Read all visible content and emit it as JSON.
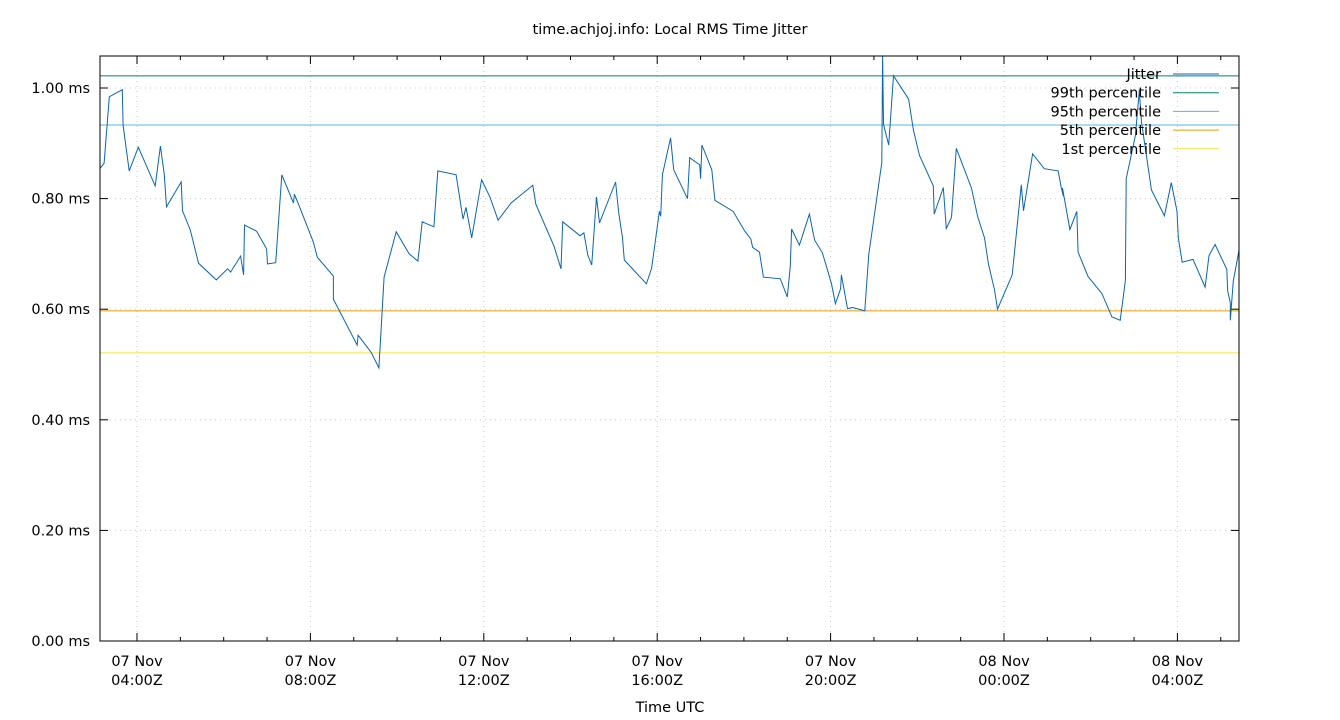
{
  "chart_data": {
    "type": "line",
    "title": "time.achjoj.info: Local RMS Time Jitter",
    "xlabel": "Time UTC",
    "ylabel": "",
    "ylim": [
      0,
      1.06
    ],
    "y_unit": "ms",
    "y_ticks": [
      "0.00 ms",
      "0.20 ms",
      "0.40 ms",
      "0.60 ms",
      "0.80 ms",
      "1.00 ms"
    ],
    "y_tick_values": [
      0,
      0.2,
      0.4,
      0.6,
      0.8,
      1.0
    ],
    "x_ticks": [
      {
        "date": "07 Nov",
        "time": "04:00Z",
        "hour": 4
      },
      {
        "date": "07 Nov",
        "time": "08:00Z",
        "hour": 8
      },
      {
        "date": "07 Nov",
        "time": "12:00Z",
        "hour": 12
      },
      {
        "date": "07 Nov",
        "time": "16:00Z",
        "hour": 16
      },
      {
        "date": "07 Nov",
        "time": "20:00Z",
        "hour": 20
      },
      {
        "date": "08 Nov",
        "time": "00:00Z",
        "hour": 24
      },
      {
        "date": "08 Nov",
        "time": "04:00Z",
        "hour": 28
      }
    ],
    "xlim_hours": [
      3.15,
      29.4
    ],
    "grid": true,
    "legend_position": "top-right",
    "legend": [
      "Jitter",
      "99th percentile",
      "95th percentile",
      "5th percentile",
      "1st percentile"
    ],
    "series": [
      {
        "name": "Jitter",
        "color": "#0b64b0",
        "note": "x = hours since 07 Nov 00:00Z, y = ms",
        "points": [
          [
            3.15,
            0.855
          ],
          [
            3.24,
            0.864
          ],
          [
            3.36,
            0.984
          ],
          [
            3.66,
            0.997
          ],
          [
            3.68,
            0.933
          ],
          [
            3.82,
            0.85
          ],
          [
            4.03,
            0.893
          ],
          [
            4.42,
            0.823
          ],
          [
            4.54,
            0.895
          ],
          [
            4.63,
            0.843
          ],
          [
            4.68,
            0.785
          ],
          [
            5.02,
            0.83
          ],
          [
            5.05,
            0.778
          ],
          [
            5.23,
            0.743
          ],
          [
            5.42,
            0.683
          ],
          [
            5.83,
            0.653
          ],
          [
            6.09,
            0.673
          ],
          [
            6.16,
            0.667
          ],
          [
            6.39,
            0.696
          ],
          [
            6.46,
            0.662
          ],
          [
            6.48,
            0.752
          ],
          [
            6.76,
            0.741
          ],
          [
            6.99,
            0.709
          ],
          [
            7.01,
            0.682
          ],
          [
            7.2,
            0.684
          ],
          [
            7.34,
            0.843
          ],
          [
            7.61,
            0.792
          ],
          [
            7.63,
            0.808
          ],
          [
            7.75,
            0.785
          ],
          [
            8.07,
            0.721
          ],
          [
            8.16,
            0.694
          ],
          [
            8.53,
            0.66
          ],
          [
            8.53,
            0.618
          ],
          [
            9.08,
            0.535
          ],
          [
            9.1,
            0.553
          ],
          [
            9.4,
            0.522
          ],
          [
            9.58,
            0.494
          ],
          [
            9.7,
            0.658
          ],
          [
            9.98,
            0.74
          ],
          [
            10.28,
            0.7
          ],
          [
            10.48,
            0.687
          ],
          [
            10.58,
            0.758
          ],
          [
            10.85,
            0.749
          ],
          [
            10.94,
            0.85
          ],
          [
            11.36,
            0.843
          ],
          [
            11.52,
            0.763
          ],
          [
            11.59,
            0.784
          ],
          [
            11.72,
            0.729
          ],
          [
            11.95,
            0.834
          ],
          [
            12.14,
            0.803
          ],
          [
            12.33,
            0.761
          ],
          [
            12.63,
            0.792
          ],
          [
            13.13,
            0.824
          ],
          [
            13.2,
            0.79
          ],
          [
            13.62,
            0.714
          ],
          [
            13.78,
            0.673
          ],
          [
            13.82,
            0.758
          ],
          [
            14.22,
            0.733
          ],
          [
            14.31,
            0.738
          ],
          [
            14.4,
            0.698
          ],
          [
            14.49,
            0.68
          ],
          [
            14.6,
            0.803
          ],
          [
            14.67,
            0.756
          ],
          [
            15.04,
            0.83
          ],
          [
            15.11,
            0.776
          ],
          [
            15.2,
            0.729
          ],
          [
            15.24,
            0.689
          ],
          [
            15.75,
            0.646
          ],
          [
            15.87,
            0.674
          ],
          [
            16.05,
            0.777
          ],
          [
            16.08,
            0.768
          ],
          [
            16.12,
            0.843
          ],
          [
            16.31,
            0.91
          ],
          [
            16.38,
            0.852
          ],
          [
            16.7,
            0.8
          ],
          [
            16.75,
            0.874
          ],
          [
            16.98,
            0.861
          ],
          [
            17.0,
            0.836
          ],
          [
            17.03,
            0.897
          ],
          [
            17.26,
            0.852
          ],
          [
            17.33,
            0.797
          ],
          [
            17.75,
            0.777
          ],
          [
            18.02,
            0.741
          ],
          [
            18.16,
            0.727
          ],
          [
            18.2,
            0.712
          ],
          [
            18.36,
            0.703
          ],
          [
            18.45,
            0.658
          ],
          [
            18.84,
            0.655
          ],
          [
            19.0,
            0.622
          ],
          [
            19.07,
            0.678
          ],
          [
            19.1,
            0.745
          ],
          [
            19.28,
            0.716
          ],
          [
            19.51,
            0.772
          ],
          [
            19.63,
            0.725
          ],
          [
            19.81,
            0.702
          ],
          [
            20.02,
            0.646
          ],
          [
            20.11,
            0.61
          ],
          [
            20.23,
            0.637
          ],
          [
            20.25,
            0.662
          ],
          [
            20.39,
            0.601
          ],
          [
            20.51,
            0.603
          ],
          [
            20.79,
            0.597
          ],
          [
            20.88,
            0.698
          ],
          [
            21.18,
            0.865
          ],
          [
            21.2,
            1.06
          ],
          [
            21.22,
            0.934
          ],
          [
            21.34,
            0.897
          ],
          [
            21.45,
            1.022
          ],
          [
            21.8,
            0.98
          ],
          [
            21.91,
            0.924
          ],
          [
            22.05,
            0.878
          ],
          [
            22.37,
            0.823
          ],
          [
            22.39,
            0.772
          ],
          [
            22.6,
            0.82
          ],
          [
            22.67,
            0.746
          ],
          [
            22.79,
            0.766
          ],
          [
            22.9,
            0.891
          ],
          [
            23.25,
            0.819
          ],
          [
            23.39,
            0.768
          ],
          [
            23.55,
            0.729
          ],
          [
            23.64,
            0.682
          ],
          [
            23.78,
            0.635
          ],
          [
            23.85,
            0.6
          ],
          [
            24.19,
            0.662
          ],
          [
            24.4,
            0.825
          ],
          [
            24.45,
            0.778
          ],
          [
            24.66,
            0.881
          ],
          [
            24.93,
            0.854
          ],
          [
            25.25,
            0.85
          ],
          [
            25.32,
            0.82
          ],
          [
            25.37,
            0.804
          ],
          [
            25.35,
            0.819
          ],
          [
            25.52,
            0.744
          ],
          [
            25.68,
            0.777
          ],
          [
            25.71,
            0.703
          ],
          [
            25.94,
            0.659
          ],
          [
            26.26,
            0.628
          ],
          [
            26.49,
            0.586
          ],
          [
            26.68,
            0.58
          ],
          [
            26.8,
            0.652
          ],
          [
            26.82,
            0.836
          ],
          [
            27.03,
            0.914
          ],
          [
            27.12,
            0.995
          ],
          [
            27.17,
            0.94
          ],
          [
            27.4,
            0.816
          ],
          [
            27.7,
            0.769
          ],
          [
            27.86,
            0.829
          ],
          [
            27.99,
            0.777
          ],
          [
            28.02,
            0.729
          ],
          [
            28.11,
            0.685
          ],
          [
            28.36,
            0.69
          ],
          [
            28.64,
            0.64
          ],
          [
            28.73,
            0.697
          ],
          [
            28.87,
            0.717
          ],
          [
            29.14,
            0.672
          ],
          [
            29.16,
            0.633
          ],
          [
            29.22,
            0.612
          ],
          [
            29.22,
            0.58
          ],
          [
            29.29,
            0.651
          ],
          [
            29.49,
            0.736
          ],
          [
            29.58,
            0.655
          ]
        ]
      },
      {
        "name": "99th percentile",
        "color": "#00875f",
        "value": 1.022
      },
      {
        "name": "95th percentile",
        "color": "#56b4e9",
        "value": 0.933
      },
      {
        "name": "5th percentile",
        "color": "#e69f00",
        "value": 0.597
      },
      {
        "name": "1st percentile",
        "color": "#f0e442",
        "value": 0.521
      }
    ]
  }
}
